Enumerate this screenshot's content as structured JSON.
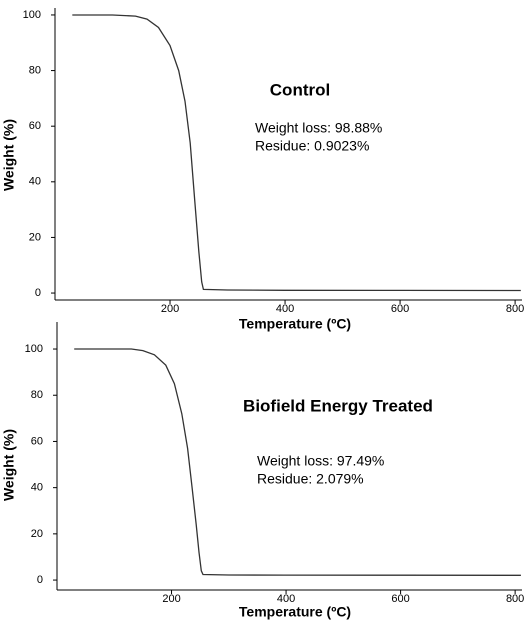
{
  "chart_data": [
    {
      "type": "line",
      "title": "Control",
      "annotations": [
        "Weight loss: 98.88%",
        "Residue: 0.9023%"
      ],
      "xlabel": "Temperature (ºC)",
      "ylabel": "Weight (%)",
      "color": "#333333",
      "x": [
        30,
        100,
        140,
        160,
        180,
        200,
        215,
        226,
        235,
        243,
        250,
        255,
        258,
        300,
        400,
        600,
        800,
        810
      ],
      "values": [
        100,
        100,
        99.6,
        98.5,
        95.5,
        89,
        80,
        69,
        54,
        33,
        15,
        4,
        1.3,
        1.1,
        1.0,
        0.95,
        0.9,
        0.9
      ],
      "xlim": [
        0,
        812
      ],
      "ylim": [
        -2.5,
        102.5
      ],
      "xticks": [
        200,
        400,
        600,
        800
      ],
      "yticks": [
        0,
        20,
        40,
        60,
        80,
        100
      ]
    },
    {
      "type": "line",
      "title": "Biofield Energy Treated",
      "annotations": [
        "Weight loss: 97.49%",
        "Residue: 2.079%"
      ],
      "xlabel": "Temperature (ºC)",
      "ylabel": "Weight (%)",
      "color": "#333333",
      "x": [
        30,
        130,
        150,
        170,
        190,
        205,
        218,
        228,
        236,
        243,
        248,
        252,
        255,
        300,
        400,
        600,
        810
      ],
      "values": [
        100,
        100,
        99.3,
        97.5,
        93,
        85,
        72,
        57,
        40,
        24,
        12,
        4,
        2.4,
        2.2,
        2.15,
        2.1,
        2.08
      ],
      "xlim": [
        0,
        812
      ],
      "ylim": [
        -4.3,
        111.7
      ],
      "xticks": [
        200,
        400,
        600,
        800
      ],
      "yticks": [
        0,
        20,
        40,
        60,
        80,
        100
      ]
    }
  ]
}
